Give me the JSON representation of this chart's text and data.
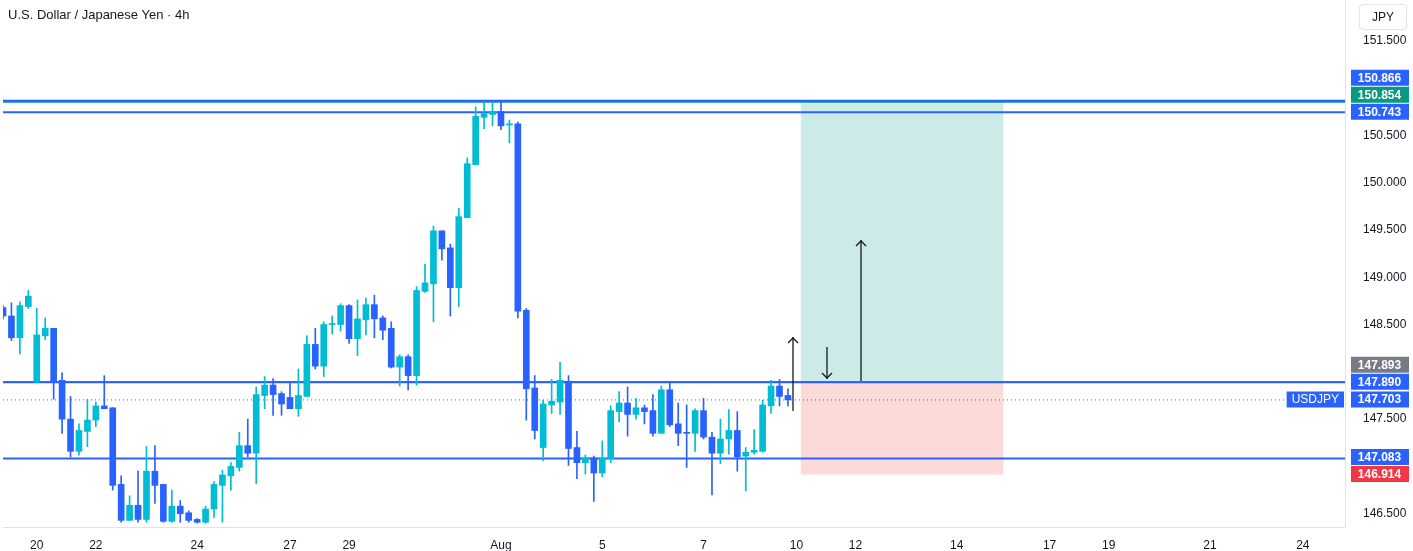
{
  "chart_data": {
    "type": "candlestick",
    "title": "U.S. Dollar / Japanese Yen · 4h",
    "ylabel": "JPY",
    "categories": [
      null,
      null,
      null,
      null,
      "20",
      null,
      null,
      null,
      null,
      null,
      null,
      "22",
      null,
      null,
      null,
      null,
      null,
      null,
      null,
      null,
      null,
      null,
      null,
      "24",
      null,
      null,
      null,
      null,
      null,
      null,
      null,
      null,
      null,
      null,
      "27",
      null,
      null,
      null,
      null,
      null,
      null,
      "29",
      null,
      null,
      null,
      null,
      null,
      null,
      null,
      null,
      null,
      null,
      null,
      null,
      null,
      null,
      null,
      null,
      null,
      "Aug",
      null,
      null,
      null,
      null,
      null,
      null,
      null,
      null,
      null,
      null,
      null,
      "5",
      null,
      null,
      null,
      null,
      null,
      null,
      null,
      null,
      null,
      null,
      null,
      "7",
      null,
      null,
      null,
      null,
      null,
      null,
      null,
      null,
      null,
      null,
      "10",
      null,
      null,
      null,
      null,
      null,
      null,
      "12",
      null,
      null,
      null,
      null,
      null,
      null,
      null,
      null,
      null,
      null,
      null,
      "14",
      null,
      null,
      null,
      null,
      null,
      null,
      null,
      null,
      null,
      null,
      "17",
      null,
      null,
      null,
      null,
      null,
      null,
      "19",
      null,
      null,
      null,
      null,
      null,
      null,
      null,
      null,
      null,
      null,
      null,
      "21",
      null,
      null,
      null,
      null,
      null,
      null,
      null,
      null,
      null,
      null,
      "24",
      null,
      null,
      null,
      null,
      null
    ],
    "ohlc": [
      [
        148.68,
        148.7,
        148.56,
        148.59
      ],
      [
        148.59,
        148.73,
        148.33,
        148.36
      ],
      [
        148.36,
        148.74,
        148.19,
        148.7
      ],
      [
        148.69,
        148.86,
        148.67,
        148.8
      ],
      [
        147.89,
        148.67,
        147.89,
        148.39
      ],
      [
        148.38,
        148.57,
        148.34,
        148.46
      ],
      [
        148.46,
        148.46,
        147.71,
        147.9
      ],
      [
        147.91,
        147.99,
        147.35,
        147.5
      ],
      [
        147.5,
        147.74,
        147.1,
        147.16
      ],
      [
        147.16,
        147.45,
        147.12,
        147.38
      ],
      [
        147.37,
        147.71,
        147.21,
        147.49
      ],
      [
        147.49,
        147.68,
        147.42,
        147.64
      ],
      [
        147.64,
        147.96,
        147.61,
        147.61
      ],
      [
        147.62,
        147.62,
        146.75,
        146.8
      ],
      [
        146.81,
        146.9,
        146.41,
        146.43
      ],
      [
        146.43,
        146.69,
        146.43,
        146.59
      ],
      [
        146.59,
        146.95,
        146.41,
        146.44
      ],
      [
        146.44,
        147.21,
        146.41,
        146.95
      ],
      [
        146.95,
        147.22,
        146.61,
        146.8
      ],
      [
        146.81,
        146.81,
        146.41,
        146.42
      ],
      [
        146.42,
        146.75,
        146.41,
        146.58
      ],
      [
        146.58,
        146.64,
        146.41,
        146.5
      ],
      [
        146.51,
        146.53,
        146.41,
        146.43
      ],
      [
        146.44,
        146.45,
        146.4,
        146.41
      ],
      [
        146.41,
        146.58,
        146.4,
        146.55
      ],
      [
        146.55,
        146.84,
        146.46,
        146.81
      ],
      [
        146.8,
        146.96,
        146.41,
        146.91
      ],
      [
        146.9,
        147.04,
        146.75,
        147.0
      ],
      [
        146.99,
        147.36,
        146.95,
        147.22
      ],
      [
        147.22,
        147.5,
        147.1,
        147.14
      ],
      [
        147.14,
        147.84,
        146.82,
        147.76
      ],
      [
        147.75,
        147.95,
        147.61,
        147.86
      ],
      [
        147.86,
        147.93,
        147.54,
        147.76
      ],
      [
        147.77,
        147.79,
        147.54,
        147.66
      ],
      [
        147.73,
        147.88,
        147.61,
        147.61
      ],
      [
        147.61,
        148.03,
        147.53,
        147.75
      ],
      [
        147.74,
        148.38,
        147.74,
        148.29
      ],
      [
        148.29,
        148.46,
        148.03,
        148.06
      ],
      [
        148.06,
        148.53,
        147.95,
        148.5
      ],
      [
        148.5,
        148.59,
        148.4,
        148.51
      ],
      [
        148.5,
        148.72,
        148.43,
        148.7
      ],
      [
        148.7,
        148.71,
        148.3,
        148.35
      ],
      [
        148.35,
        148.76,
        148.17,
        148.56
      ],
      [
        148.55,
        148.78,
        148.39,
        148.71
      ],
      [
        148.71,
        148.81,
        148.36,
        148.56
      ],
      [
        148.57,
        148.59,
        148.34,
        148.44
      ],
      [
        148.46,
        148.53,
        148.04,
        148.05
      ],
      [
        148.05,
        148.18,
        147.85,
        148.16
      ],
      [
        148.16,
        148.18,
        147.81,
        147.96
      ],
      [
        147.96,
        148.9,
        147.86,
        148.86
      ],
      [
        148.85,
        149.14,
        148.84,
        148.94
      ],
      [
        148.93,
        149.54,
        148.53,
        149.49
      ],
      [
        149.49,
        149.49,
        149.18,
        149.3
      ],
      [
        149.31,
        149.35,
        148.59,
        148.89
      ],
      [
        148.89,
        149.73,
        148.69,
        149.64
      ],
      [
        149.63,
        150.26,
        149.63,
        150.2
      ],
      [
        150.19,
        150.8,
        150.19,
        150.7
      ],
      [
        150.69,
        150.85,
        150.57,
        150.73
      ],
      [
        150.72,
        150.85,
        150.6,
        150.75
      ],
      [
        150.75,
        150.87,
        150.56,
        150.6
      ],
      [
        150.61,
        150.66,
        150.42,
        150.62
      ],
      [
        150.62,
        150.64,
        148.57,
        148.64
      ],
      [
        148.65,
        148.67,
        147.49,
        147.82
      ],
      [
        147.83,
        147.96,
        147.29,
        147.38
      ],
      [
        147.2,
        147.7,
        147.06,
        147.66
      ],
      [
        147.65,
        147.92,
        147.56,
        147.69
      ],
      [
        147.68,
        148.1,
        147.55,
        147.91
      ],
      [
        147.9,
        147.96,
        147.01,
        147.19
      ],
      [
        147.2,
        147.37,
        146.87,
        147.04
      ],
      [
        147.04,
        147.12,
        146.92,
        147.09
      ],
      [
        147.09,
        147.11,
        146.63,
        146.93
      ],
      [
        146.93,
        147.27,
        146.89,
        147.09
      ],
      [
        147.08,
        147.64,
        147.04,
        147.59
      ],
      [
        147.58,
        147.79,
        147.47,
        147.67
      ],
      [
        147.67,
        147.84,
        147.32,
        147.55
      ],
      [
        147.55,
        147.72,
        147.5,
        147.62
      ],
      [
        147.62,
        147.65,
        147.45,
        147.58
      ],
      [
        147.59,
        147.76,
        147.32,
        147.35
      ],
      [
        147.35,
        147.85,
        147.35,
        147.81
      ],
      [
        147.81,
        147.88,
        147.42,
        147.44
      ],
      [
        147.45,
        147.67,
        147.22,
        147.35
      ],
      [
        147.36,
        147.65,
        146.99,
        147.35
      ],
      [
        147.35,
        147.61,
        147.16,
        147.59
      ],
      [
        147.59,
        147.72,
        147.29,
        147.31
      ],
      [
        147.31,
        147.36,
        146.7,
        147.14
      ],
      [
        147.14,
        147.5,
        147.03,
        147.29
      ],
      [
        147.29,
        147.6,
        147.13,
        147.38
      ],
      [
        147.38,
        147.58,
        146.95,
        147.1
      ],
      [
        147.11,
        147.2,
        146.74,
        147.15
      ],
      [
        147.15,
        147.39,
        147.13,
        147.17
      ],
      [
        147.16,
        147.7,
        147.15,
        147.65
      ],
      [
        147.64,
        147.91,
        147.56,
        147.85
      ],
      [
        147.85,
        147.92,
        147.64,
        147.74
      ],
      [
        147.75,
        147.82,
        147.64,
        147.703
      ],
      null,
      null,
      null,
      null,
      null,
      null,
      null,
      null,
      null,
      null,
      null,
      null,
      null,
      null,
      null,
      null,
      null,
      null,
      null,
      null,
      null,
      null,
      null,
      null,
      null,
      null,
      null,
      null,
      null,
      null,
      null,
      null,
      null,
      null,
      null,
      null,
      null,
      null,
      null,
      null,
      null,
      null,
      null,
      null,
      null,
      null,
      null,
      null,
      null,
      null,
      null,
      null,
      null,
      null,
      null,
      null,
      null,
      null,
      null,
      null,
      null,
      null,
      null,
      null,
      null,
      null
    ],
    "colors": [
      "#2962ff",
      "#2962ff",
      "#00bcd4",
      "#00bcd4",
      "#00bcd4",
      "#00bcd4",
      "#2962ff",
      "#2962ff",
      "#2962ff",
      "#00bcd4",
      "#00bcd4",
      "#00bcd4",
      "#2962ff",
      "#2962ff",
      "#2962ff",
      "#00bcd4",
      "#2962ff",
      "#00bcd4",
      "#2962ff",
      "#2962ff",
      "#00bcd4",
      "#2962ff",
      "#2962ff",
      "#2962ff",
      "#00bcd4",
      "#00bcd4",
      "#00bcd4",
      "#00bcd4",
      "#00bcd4",
      "#2962ff",
      "#00bcd4",
      "#00bcd4",
      "#2962ff",
      "#2962ff",
      "#2962ff",
      "#00bcd4",
      "#00bcd4",
      "#2962ff",
      "#00bcd4",
      "#00bcd4",
      "#00bcd4",
      "#2962ff",
      "#00bcd4",
      "#00bcd4",
      "#2962ff",
      "#2962ff",
      "#2962ff",
      "#00bcd4",
      "#2962ff",
      "#00bcd4",
      "#00bcd4",
      "#00bcd4",
      "#2962ff",
      "#2962ff",
      "#00bcd4",
      "#00bcd4",
      "#00bcd4",
      "#00bcd4",
      "#00bcd4",
      "#2962ff",
      "#00bcd4",
      "#2962ff",
      "#2962ff",
      "#2962ff",
      "#00bcd4",
      "#00bcd4",
      "#00bcd4",
      "#2962ff",
      "#2962ff",
      "#00bcd4",
      "#2962ff",
      "#00bcd4",
      "#00bcd4",
      "#00bcd4",
      "#2962ff",
      "#00bcd4",
      "#2962ff",
      "#2962ff",
      "#00bcd4",
      "#2962ff",
      "#2962ff",
      "#2962ff",
      "#00bcd4",
      "#2962ff",
      "#2962ff",
      "#00bcd4",
      "#00bcd4",
      "#2962ff",
      "#00bcd4",
      "#00bcd4",
      "#00bcd4",
      "#00bcd4",
      "#2962ff",
      "#2962ff",
      null,
      null,
      null,
      null,
      null,
      null,
      null,
      null,
      null,
      null,
      null,
      null,
      null,
      null,
      null,
      null,
      null,
      null,
      null,
      null,
      null,
      null,
      null,
      null,
      null,
      null,
      null,
      null,
      null,
      null,
      null,
      null,
      null,
      null,
      null,
      null,
      null,
      null,
      null,
      null,
      null,
      null,
      null,
      null,
      null,
      null,
      null,
      null,
      null,
      null,
      null,
      null,
      null,
      null,
      null,
      null,
      null,
      null,
      null,
      null,
      null,
      null,
      null,
      null,
      null,
      null
    ],
    "ylim": [
      146.36,
      151.93
    ],
    "yticks": [
      {
        "value": 146.5,
        "label": "146.500"
      },
      {
        "value": 147.5,
        "label": "147.500"
      },
      {
        "value": 148.5,
        "label": "148.500"
      },
      {
        "value": 149,
        "label": "149.000"
      },
      {
        "value": 149.5,
        "label": "149.500"
      },
      {
        "value": 150,
        "label": "150.000"
      },
      {
        "value": 150.5,
        "label": "150.500"
      },
      {
        "value": 151.5,
        "label": "151.500"
      }
    ],
    "ref_lines": [
      {
        "axis": "y",
        "value": 147.893,
        "label": "147.893",
        "color": "#787b86"
      },
      {
        "axis": "y",
        "value": 150.854,
        "label": "150.854",
        "color": "#089981"
      },
      {
        "axis": "y",
        "value": 150.866,
        "label": "150.866",
        "color": "#2962ff"
      },
      {
        "axis": "y",
        "value": 150.743,
        "label": "150.743",
        "color": "#2962ff"
      },
      {
        "axis": "y",
        "value": 147.89,
        "label": "147.890",
        "color": "#2962ff"
      },
      {
        "axis": "y",
        "value": 147.083,
        "label": "147.083",
        "color": "#2962ff"
      },
      {
        "axis": "y",
        "value": 147.703,
        "label": "147.703",
        "color": "#2962ff",
        "line_style": "dotted"
      }
    ],
    "annotations": [
      {
        "text": "USDJPY",
        "y": 147.703
      }
    ],
    "bands": [
      {
        "axis": "y",
        "from": 147.893,
        "to": 150.854,
        "color": "#cceae7"
      },
      {
        "axis": "y",
        "from": 146.914,
        "to": 147.893,
        "label": "146.914",
        "color": "#fcdada"
      }
    ]
  }
}
